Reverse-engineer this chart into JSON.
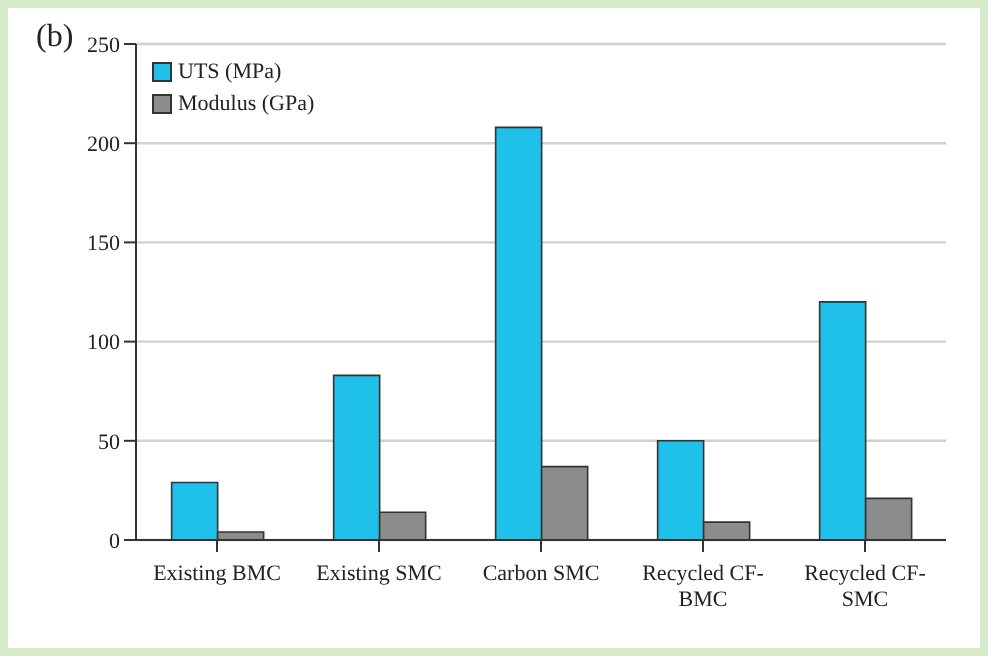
{
  "chart_data": {
    "type": "bar",
    "categories": [
      "Existing BMC",
      "Existing SMC",
      "Carbon SMC",
      "Recycled CF-BMC",
      "Recycled CF-SMC"
    ],
    "series": [
      {
        "name": "UTS (MPa)",
        "color": "#1fc0ea",
        "values": [
          29,
          83,
          208,
          50,
          120
        ]
      },
      {
        "name": "Modulus (GPa)",
        "color": "#8c8c8c",
        "values": [
          4,
          14,
          37,
          9,
          21
        ]
      }
    ],
    "ylim": [
      0,
      250
    ],
    "yticks": [
      0,
      50,
      100,
      150,
      200,
      250
    ],
    "grid": "y",
    "legend": "top left",
    "annotations": [
      "(b)"
    ]
  }
}
